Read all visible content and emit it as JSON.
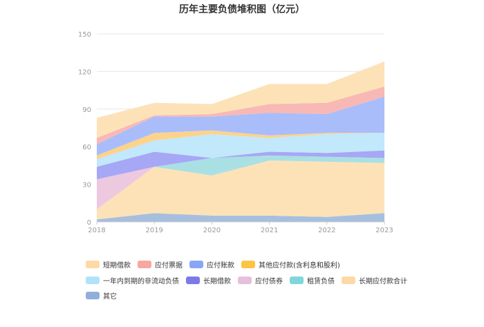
{
  "chart_data": {
    "type": "area",
    "title": "历年主要负债堆积图（亿元）",
    "categories": [
      "2018",
      "2019",
      "2020",
      "2021",
      "2022",
      "2023"
    ],
    "ylim": [
      0,
      150
    ],
    "yticks": [
      0,
      30,
      60,
      90,
      120,
      150
    ],
    "grid": true,
    "legend_position": "bottom",
    "series": [
      {
        "name": "其它",
        "color": "#a6bfdf",
        "values": [
          2,
          7,
          5,
          5,
          4,
          7
        ]
      },
      {
        "name": "长期应付款合计",
        "color": "#fde2b8",
        "values": [
          8,
          37,
          32,
          44,
          44,
          40
        ]
      },
      {
        "name": "租赁负债",
        "color": "#a9e0e3",
        "values": [
          0,
          0,
          0,
          4,
          4,
          4
        ]
      },
      {
        "name": "应付债券",
        "color": "#edc9e0",
        "values": [
          24,
          0,
          0,
          0,
          0,
          0
        ]
      },
      {
        "name": "租赁负债",
        "color": "#a9e0e3",
        "values": [
          0,
          0,
          14,
          0,
          0,
          0
        ]
      },
      {
        "name": "长期借款",
        "color": "#a6a7f5",
        "values": [
          10,
          12,
          0,
          3,
          3,
          6
        ]
      },
      {
        "name": "一年内到期的非流动负债",
        "color": "#c1e8fb",
        "values": [
          6,
          9,
          19,
          11,
          15,
          14
        ]
      },
      {
        "name": "其他应付款(含利息和股利)",
        "color": "#fdd38b",
        "values": [
          3,
          6,
          3,
          2,
          1,
          0
        ]
      },
      {
        "name": "应付账款",
        "color": "#a9bdfb",
        "values": [
          9,
          13,
          11,
          18,
          15,
          29
        ]
      },
      {
        "name": "应付票据",
        "color": "#f8b8b5",
        "values": [
          5,
          1,
          2,
          7,
          9,
          8
        ]
      },
      {
        "name": "短期借款",
        "color": "#fde2b8",
        "values": [
          16,
          10,
          8,
          16,
          15,
          20
        ]
      }
    ],
    "legend": [
      {
        "name": "短期借款",
        "color": "#fdd9a5"
      },
      {
        "name": "应付票据",
        "color": "#f7a6a0"
      },
      {
        "name": "应付账款",
        "color": "#8aa4f7"
      },
      {
        "name": "其他应付款(含利息和股利)",
        "color": "#fcc541"
      },
      {
        "name": "一年内到期的非流动负债",
        "color": "#b3e1f9"
      },
      {
        "name": "长期借款",
        "color": "#7b7ae8"
      },
      {
        "name": "应付债券",
        "color": "#e6bfdd"
      },
      {
        "name": "租赁负债",
        "color": "#7fd7dc"
      },
      {
        "name": "长期应付款合计",
        "color": "#fdd9a5"
      },
      {
        "name": "其它",
        "color": "#92aedb"
      }
    ]
  }
}
